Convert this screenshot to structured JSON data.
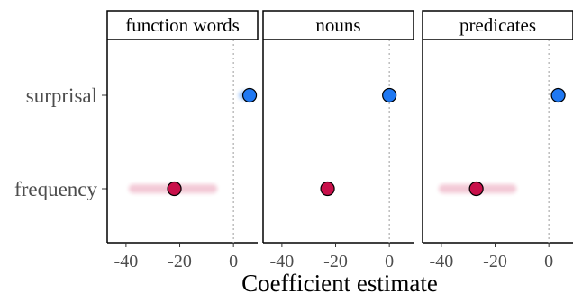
{
  "chart_data": {
    "type": "scatter",
    "xlabel": "Coefficient estimate",
    "ylabel": "",
    "categories": [
      "surprisal",
      "frequency"
    ],
    "colors": {
      "surprisal": "#1f78f2",
      "frequency": "#c8104a",
      "reference_line": "#b3b3b3"
    },
    "reference_line_x": 0,
    "x_ticks": [
      -40,
      -20,
      0
    ],
    "x_tick_labels": [
      "-40",
      "-20",
      "0"
    ],
    "grid": false,
    "facets": [
      {
        "label": "function words",
        "xlim": [
          -47,
          9
        ],
        "points": [
          {
            "category": "surprisal",
            "estimate": 6.0,
            "spread": [
              2,
              8
            ]
          },
          {
            "category": "frequency",
            "estimate": -22.0,
            "spread": [
              -39,
              -6
            ]
          }
        ]
      },
      {
        "label": "nouns",
        "xlim": [
          -47,
          9
        ],
        "points": [
          {
            "category": "surprisal",
            "estimate": 0.0,
            "spread": [
              -1,
              1
            ]
          },
          {
            "category": "frequency",
            "estimate": -23.0,
            "spread": [
              -24,
              -22
            ]
          }
        ]
      },
      {
        "label": "predicates",
        "xlim": [
          -47,
          9
        ],
        "points": [
          {
            "category": "surprisal",
            "estimate": 3.5,
            "spread": [
              2.5,
              5
            ]
          },
          {
            "category": "frequency",
            "estimate": -27.0,
            "spread": [
              -41,
              -12
            ]
          }
        ]
      }
    ]
  }
}
